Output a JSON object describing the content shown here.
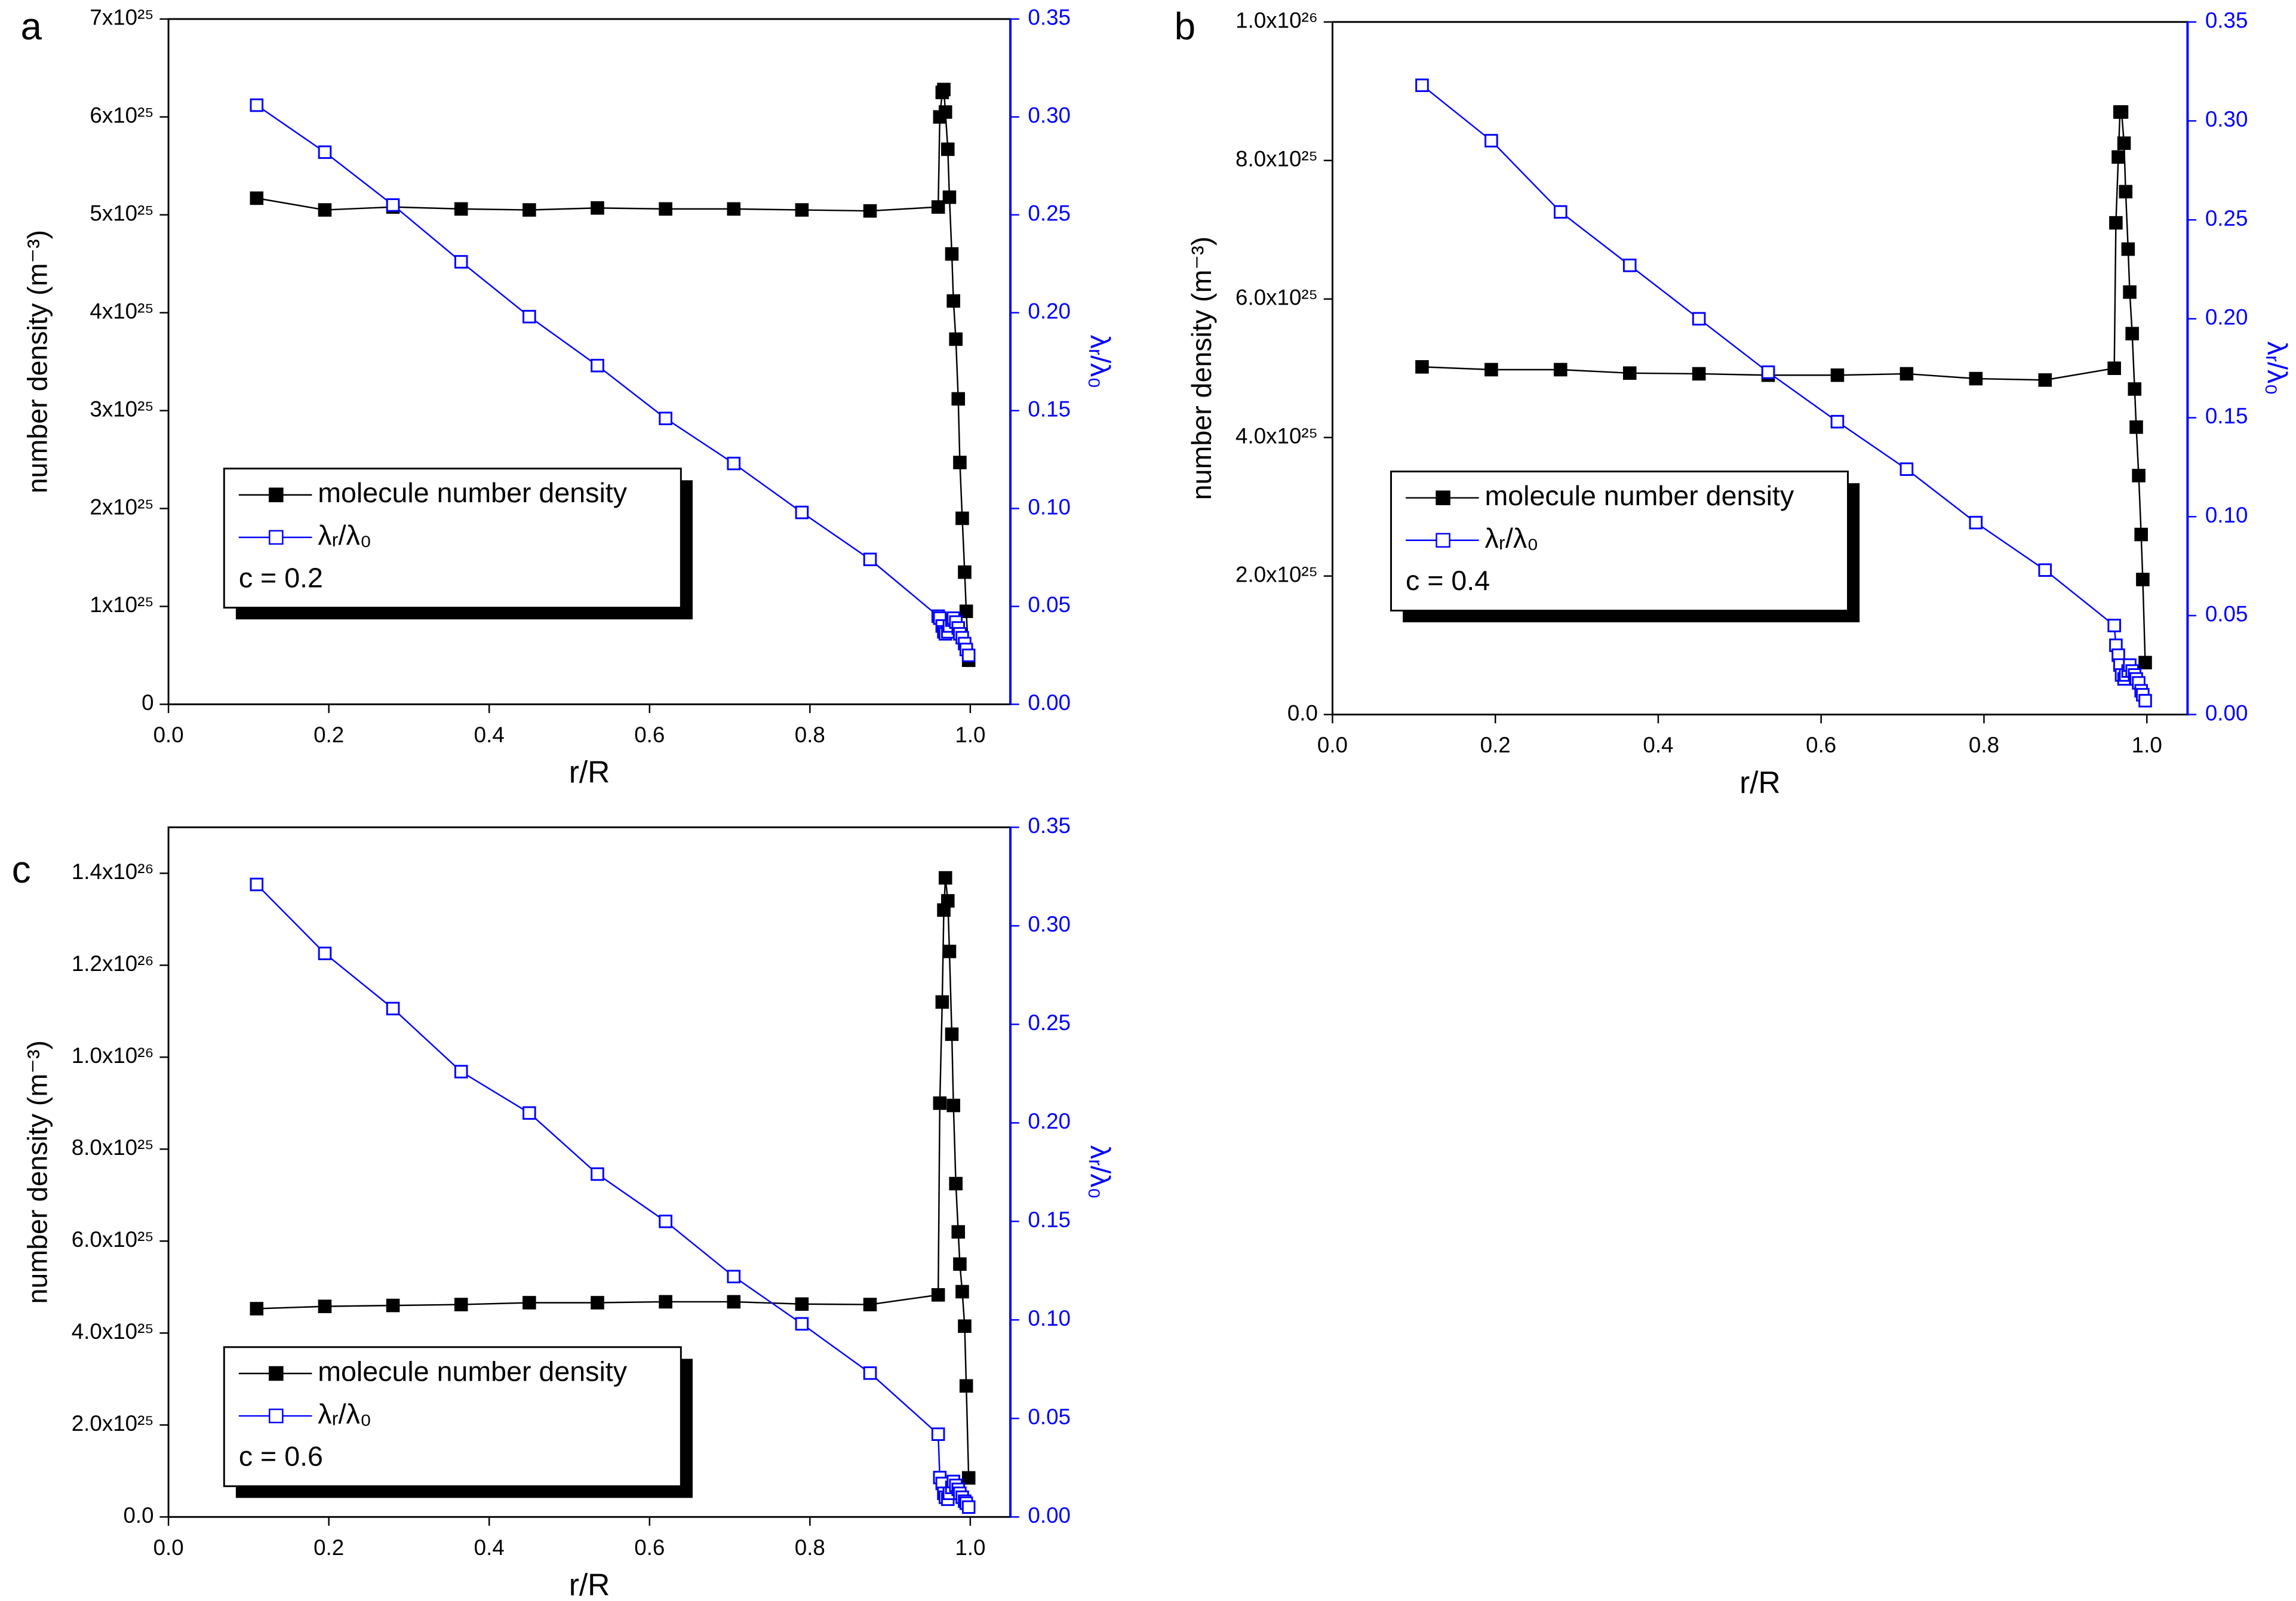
{
  "chart_data": [
    {
      "type": "line",
      "panel_label": "a",
      "xlabel": "r/R",
      "ylabel": "number density (m⁻³)",
      "y2label": "λᵣ/λ₀",
      "annotation": "c = 0.2",
      "legend": "lower left",
      "xlim": [
        0,
        1.05
      ],
      "xticks": [
        {
          "value": 0,
          "label": "0.0"
        },
        0.2,
        0.4,
        0.6,
        0.8,
        {
          "value": 1,
          "label": "1.0"
        }
      ],
      "ylim": [
        0,
        7e+25
      ],
      "yticks": [
        0,
        {
          "value": 1e+25,
          "label": "1x10²⁵"
        },
        {
          "value": 2e+25,
          "label": "2x10²⁵"
        },
        {
          "value": 3e+25,
          "label": "3x10²⁵"
        },
        {
          "value": 4e+25,
          "label": "4x10²⁵"
        },
        {
          "value": 5e+25,
          "label": "5x10²⁵"
        },
        {
          "value": 6e+25,
          "label": "6x10²⁵"
        },
        {
          "value": 7e+25,
          "label": "7x10²⁵"
        }
      ],
      "y2lim": [
        0,
        0.35
      ],
      "y2ticks": [
        {
          "value": 0,
          "label": "0.00"
        },
        0.05,
        {
          "value": 0.1,
          "label": "0.10"
        },
        0.15,
        {
          "value": 0.2,
          "label": "0.20"
        },
        0.25,
        {
          "value": 0.3,
          "label": "0.30"
        },
        0.35
      ],
      "x": [
        0.11,
        0.195,
        0.28,
        0.365,
        0.45,
        0.535,
        0.62,
        0.705,
        0.79,
        0.875,
        0.96,
        0.962,
        0.965,
        0.967,
        0.969,
        0.972,
        0.974,
        0.977,
        0.979,
        0.982,
        0.985,
        0.987,
        0.99,
        0.993,
        0.995,
        0.998
      ],
      "series": [
        {
          "name": "molecule number density",
          "color": "#000000",
          "marker": "filled-square",
          "values": [
            5.17e+25,
            5.05e+25,
            5.08e+25,
            5.06e+25,
            5.05e+25,
            5.07e+25,
            5.06e+25,
            5.06e+25,
            5.05e+25,
            5.04e+25,
            5.08e+25,
            6e+25,
            6.25e+25,
            6.28e+25,
            6.05e+25,
            5.67e+25,
            5.18e+25,
            4.6e+25,
            4.12e+25,
            3.73e+25,
            3.12e+25,
            2.47e+25,
            1.9e+25,
            1.35e+25,
            9.5e+24,
            4.5e+24
          ]
        },
        {
          "name": "λᵣ/λ₀",
          "color": "#0000ff",
          "marker": "open-square",
          "axis": "y2",
          "values": [
            0.306,
            0.282,
            0.255,
            0.226,
            0.198,
            0.173,
            0.146,
            0.123,
            0.098,
            0.074,
            0.045,
            0.044,
            0.04,
            0.037,
            0.036,
            0.037,
            0.04,
            0.043,
            0.044,
            0.042,
            0.039,
            0.036,
            0.034,
            0.031,
            0.028,
            0.025
          ]
        }
      ]
    },
    {
      "type": "line",
      "panel_label": "b",
      "xlabel": "r/R",
      "ylabel": "number density (m⁻³)",
      "y2label": "λᵣ/λ₀",
      "annotation": "c = 0.4",
      "legend": "lower left",
      "xlim": [
        0,
        1.05
      ],
      "xticks": [
        {
          "value": 0,
          "label": "0.0"
        },
        0.2,
        0.4,
        0.6,
        0.8,
        {
          "value": 1,
          "label": "1.0"
        }
      ],
      "ylim": [
        0,
        1e+26
      ],
      "yticks": [
        {
          "value": 0,
          "label": "0.0"
        },
        {
          "value": 2e+25,
          "label": "2.0x10²⁵"
        },
        {
          "value": 4e+25,
          "label": "4.0x10²⁵"
        },
        {
          "value": 6e+25,
          "label": "6.0x10²⁵"
        },
        {
          "value": 8e+25,
          "label": "8.0x10²⁵"
        },
        {
          "value": 1e+26,
          "label": "1.0x10²⁶"
        }
      ],
      "y2lim": [
        0,
        0.35
      ],
      "y2ticks": [
        {
          "value": 0,
          "label": "0.00"
        },
        0.05,
        {
          "value": 0.1,
          "label": "0.10"
        },
        0.15,
        {
          "value": 0.2,
          "label": "0.20"
        },
        0.25,
        {
          "value": 0.3,
          "label": "0.30"
        },
        0.35
      ],
      "x": [
        0.11,
        0.195,
        0.28,
        0.365,
        0.45,
        0.535,
        0.62,
        0.705,
        0.79,
        0.875,
        0.96,
        0.962,
        0.965,
        0.967,
        0.969,
        0.972,
        0.974,
        0.977,
        0.979,
        0.982,
        0.985,
        0.987,
        0.99,
        0.993,
        0.995,
        0.998
      ],
      "series": [
        {
          "name": "molecule number density",
          "color": "#000000",
          "marker": "filled-square",
          "values": [
            5.02e+25,
            4.98e+25,
            4.98e+25,
            4.93e+25,
            4.92e+25,
            4.9e+25,
            4.9e+25,
            4.92e+25,
            4.85e+25,
            4.83e+25,
            5e+25,
            7.1e+25,
            8.05e+25,
            8.7e+25,
            8.7e+25,
            8.25e+25,
            7.55e+25,
            6.72e+25,
            6.1e+25,
            5.5e+25,
            4.7e+25,
            4.15e+25,
            3.45e+25,
            2.6e+25,
            1.95e+25,
            7.5e+24
          ]
        },
        {
          "name": "λᵣ/λ₀",
          "color": "#0000ff",
          "marker": "open-square",
          "axis": "y2",
          "values": [
            0.318,
            0.29,
            0.254,
            0.227,
            0.2,
            0.173,
            0.148,
            0.124,
            0.097,
            0.073,
            0.045,
            0.035,
            0.03,
            0.025,
            0.02,
            0.018,
            0.02,
            0.022,
            0.025,
            0.022,
            0.02,
            0.018,
            0.016,
            0.012,
            0.01,
            0.007
          ]
        }
      ]
    },
    {
      "type": "line",
      "panel_label": "c",
      "xlabel": "r/R",
      "ylabel": "number density (m⁻³)",
      "y2label": "λᵣ/λ₀",
      "annotation": "c = 0.6",
      "legend": "lower left",
      "xlim": [
        0,
        1.05
      ],
      "xticks": [
        {
          "value": 0,
          "label": "0.0"
        },
        0.2,
        0.4,
        0.6,
        0.8,
        {
          "value": 1,
          "label": "1.0"
        }
      ],
      "ylim": [
        0,
        1.5e+26
      ],
      "yticks": [
        {
          "value": 0,
          "label": "0.0"
        },
        {
          "value": 2e+25,
          "label": "2.0x10²⁵"
        },
        {
          "value": 4e+25,
          "label": "4.0x10²⁵"
        },
        {
          "value": 6e+25,
          "label": "6.0x10²⁵"
        },
        {
          "value": 8e+25,
          "label": "8.0x10²⁵"
        },
        {
          "value": 1e+26,
          "label": "1.0x10²⁶"
        },
        {
          "value": 1.2e+26,
          "label": "1.2x10²⁶"
        },
        {
          "value": 1.4e+26,
          "label": "1.4x10²⁶"
        }
      ],
      "y2lim": [
        0,
        0.35
      ],
      "y2ticks": [
        {
          "value": 0,
          "label": "0.00"
        },
        0.05,
        {
          "value": 0.1,
          "label": "0.10"
        },
        0.15,
        {
          "value": 0.2,
          "label": "0.20"
        },
        0.25,
        {
          "value": 0.3,
          "label": "0.30"
        },
        0.35
      ],
      "x": [
        0.11,
        0.195,
        0.28,
        0.365,
        0.45,
        0.535,
        0.62,
        0.705,
        0.79,
        0.875,
        0.96,
        0.962,
        0.965,
        0.967,
        0.969,
        0.972,
        0.974,
        0.977,
        0.979,
        0.982,
        0.985,
        0.987,
        0.99,
        0.993,
        0.995,
        0.998
      ],
      "series": [
        {
          "name": "molecule number density",
          "color": "#000000",
          "marker": "filled-square",
          "values": [
            4.53e+25,
            4.58e+25,
            4.6e+25,
            4.62e+25,
            4.66e+25,
            4.66e+25,
            4.68e+25,
            4.68e+25,
            4.63e+25,
            4.62e+25,
            4.83e+25,
            9e+25,
            1.12e+26,
            1.32e+26,
            1.39e+26,
            1.34e+26,
            1.23e+26,
            1.05e+26,
            8.95e+25,
            7.25e+25,
            6.2e+25,
            5.5e+25,
            4.9e+25,
            4.15e+25,
            2.85e+25,
            8.5e+24
          ]
        },
        {
          "name": "λᵣ/λ₀",
          "color": "#0000ff",
          "marker": "open-square",
          "axis": "y2",
          "values": [
            0.321,
            0.286,
            0.258,
            0.226,
            0.205,
            0.174,
            0.15,
            0.122,
            0.098,
            0.073,
            0.042,
            0.02,
            0.017,
            0.012,
            0.01,
            0.009,
            0.012,
            0.015,
            0.018,
            0.016,
            0.014,
            0.012,
            0.01,
            0.008,
            0.007,
            0.005
          ]
        }
      ]
    }
  ]
}
